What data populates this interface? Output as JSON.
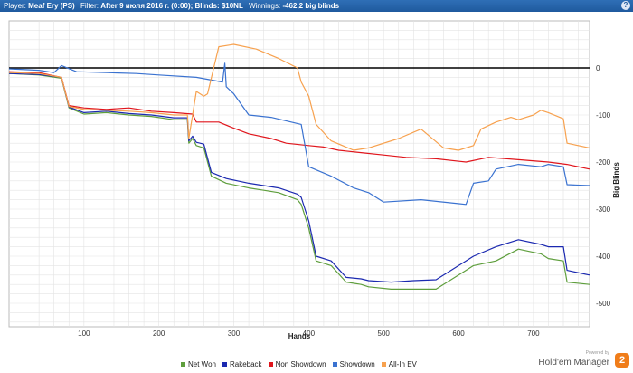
{
  "header": {
    "player_label": "Player:",
    "player_value": "Meaf Ery (PS)",
    "filter_label": "Filter:",
    "filter_value": "After 9 июля 2016 г. (0:00); Blinds: $10NL",
    "winnings_label": "Winnings:",
    "winnings_value": "-462,2 big blinds",
    "help_icon": "?"
  },
  "branding": {
    "powered_by": "Powered by",
    "product": "Hold'em Manager",
    "logo_text": "2"
  },
  "chart_data": {
    "type": "line",
    "xlabel": "Hands",
    "ylabel": "Big Blinds",
    "xlim": [
      0,
      775
    ],
    "ylim": [
      -550,
      100
    ],
    "x_ticks": [
      100,
      200,
      300,
      400,
      500,
      600,
      700
    ],
    "y_ticks": [
      0,
      -100,
      -200,
      -300,
      -400,
      -500
    ],
    "grid": true,
    "legend_position": "bottom",
    "series": [
      {
        "name": "Net Won",
        "color": "#5e9e3c",
        "x": [
          0,
          40,
          70,
          80,
          100,
          130,
          160,
          190,
          220,
          238,
          240,
          245,
          250,
          260,
          270,
          290,
          320,
          340,
          360,
          385,
          390,
          400,
          410,
          430,
          450,
          470,
          480,
          510,
          540,
          570,
          610,
          620,
          650,
          680,
          710,
          720,
          740,
          745,
          775
        ],
        "y": [
          -12,
          -15,
          -22,
          -85,
          -98,
          -95,
          -100,
          -103,
          -110,
          -110,
          -160,
          -150,
          -165,
          -170,
          -230,
          -245,
          -255,
          -260,
          -265,
          -280,
          -290,
          -340,
          -410,
          -420,
          -455,
          -460,
          -465,
          -470,
          -470,
          -470,
          -430,
          -420,
          -410,
          -385,
          -395,
          -405,
          -410,
          -455,
          -460
        ]
      },
      {
        "name": "Rakeback",
        "color": "#1b29b0",
        "x": [
          0,
          40,
          70,
          80,
          100,
          130,
          160,
          190,
          220,
          238,
          240,
          245,
          250,
          260,
          270,
          290,
          320,
          340,
          360,
          385,
          390,
          400,
          410,
          430,
          450,
          470,
          480,
          510,
          540,
          570,
          610,
          620,
          650,
          680,
          710,
          720,
          740,
          745,
          775
        ],
        "y": [
          -12,
          -14,
          -20,
          -83,
          -95,
          -92,
          -97,
          -100,
          -106,
          -106,
          -155,
          -145,
          -158,
          -162,
          -222,
          -235,
          -245,
          -250,
          -255,
          -268,
          -275,
          -325,
          -400,
          -410,
          -445,
          -448,
          -452,
          -455,
          -452,
          -450,
          -410,
          -400,
          -380,
          -365,
          -375,
          -380,
          -380,
          -430,
          -440
        ]
      },
      {
        "name": "Non Showdown",
        "color": "#e0151c",
        "x": [
          0,
          40,
          70,
          80,
          100,
          130,
          160,
          190,
          220,
          245,
          250,
          280,
          300,
          320,
          350,
          370,
          400,
          420,
          440,
          470,
          500,
          530,
          570,
          610,
          640,
          680,
          720,
          745,
          775
        ],
        "y": [
          -8,
          -10,
          -20,
          -80,
          -85,
          -88,
          -85,
          -92,
          -95,
          -98,
          -115,
          -115,
          -128,
          -140,
          -150,
          -160,
          -165,
          -168,
          -175,
          -180,
          -185,
          -190,
          -193,
          -200,
          -190,
          -195,
          -200,
          -205,
          -215
        ]
      },
      {
        "name": "Showdown",
        "color": "#3a72d0",
        "x": [
          0,
          40,
          60,
          70,
          90,
          130,
          170,
          200,
          250,
          285,
          288,
          290,
          300,
          320,
          350,
          390,
          400,
          430,
          460,
          470,
          480,
          500,
          550,
          610,
          620,
          640,
          650,
          680,
          710,
          720,
          740,
          745,
          775
        ],
        "y": [
          -2,
          -5,
          -10,
          5,
          -8,
          -10,
          -12,
          -15,
          -20,
          -30,
          10,
          -40,
          -55,
          -100,
          -105,
          -120,
          -210,
          -230,
          -255,
          -260,
          -265,
          -285,
          -280,
          -290,
          -245,
          -240,
          -215,
          -205,
          -210,
          -205,
          -210,
          -248,
          -250
        ]
      },
      {
        "name": "All-In EV",
        "color": "#f7a14e",
        "x": [
          0,
          40,
          70,
          80,
          100,
          130,
          160,
          190,
          220,
          238,
          240,
          250,
          260,
          265,
          280,
          300,
          330,
          360,
          385,
          390,
          400,
          410,
          430,
          460,
          480,
          520,
          550,
          580,
          600,
          620,
          630,
          650,
          670,
          680,
          700,
          710,
          720,
          740,
          745,
          775
        ],
        "y": [
          -10,
          -12,
          -20,
          -82,
          -88,
          -90,
          -92,
          -95,
          -100,
          -100,
          -150,
          -50,
          -60,
          -55,
          45,
          50,
          40,
          20,
          0,
          -30,
          -60,
          -120,
          -155,
          -175,
          -170,
          -150,
          -130,
          -170,
          -175,
          -165,
          -130,
          -115,
          -105,
          -110,
          -100,
          -90,
          -95,
          -108,
          -160,
          -170
        ]
      }
    ]
  }
}
